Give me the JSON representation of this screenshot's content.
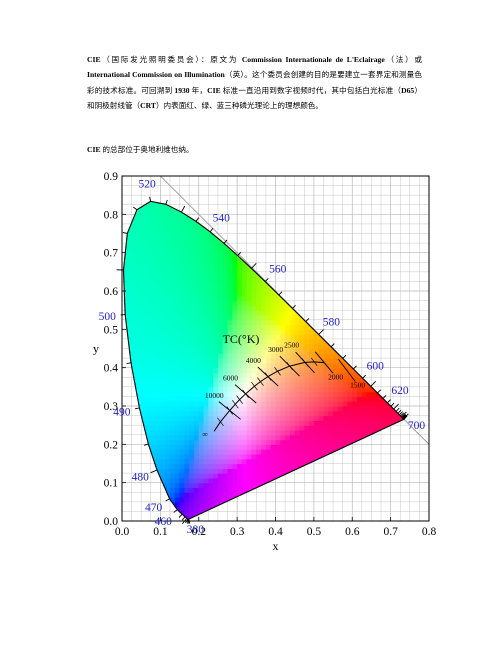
{
  "intro": {
    "parts": [
      {
        "t": "CIE",
        "b": true
      },
      {
        "t": "（国际发光照明委员会）：原文为 ",
        "b": false
      },
      {
        "t": "Commission Internationale de L'Eclairage",
        "b": true
      },
      {
        "t": "（法）或 ",
        "b": false
      },
      {
        "t": "International Commission on Illumination",
        "b": true
      },
      {
        "t": "（英）。这个委员会创建的目的是要建立一套界定和测量色彩的技术标准。可回溯到 ",
        "b": false
      },
      {
        "t": "1930",
        "b": true
      },
      {
        "t": " 年，",
        "b": false
      },
      {
        "t": "CIE",
        "b": true
      },
      {
        "t": " 标准一直沿用到数字视频时代，其中包括白光标准（",
        "b": false
      },
      {
        "t": "D65",
        "b": true
      },
      {
        "t": "）和阴极射线管（",
        "b": false
      },
      {
        "t": "CRT",
        "b": true
      },
      {
        "t": "）内表面红、绿、蓝三种磷光理论上的理想颜色。",
        "b": false
      }
    ]
  },
  "location": {
    "parts": [
      {
        "t": "CIE",
        "b": true
      },
      {
        "t": " 的总部位于奥地利维也纳。",
        "b": false
      }
    ]
  },
  "chart_data": {
    "type": "chromaticity",
    "xlabel": "x",
    "ylabel": "y",
    "xlim": [
      0,
      0.8
    ],
    "ylim": [
      0,
      0.9
    ],
    "x_ticks": [
      "0.0",
      "0.1",
      "0.2",
      "0.3",
      "0.4",
      "0.5",
      "0.6",
      "0.7",
      "0.8"
    ],
    "y_ticks": [
      "0.0",
      "0.1",
      "0.2",
      "0.3",
      "0.4",
      "0.5",
      "0.6",
      "0.7",
      "0.8",
      "0.9"
    ],
    "grid": true,
    "spectral_locus": [
      [
        0.1741,
        0.005
      ],
      [
        0.1738,
        0.0049
      ],
      [
        0.1733,
        0.0048
      ],
      [
        0.1726,
        0.0048
      ],
      [
        0.1714,
        0.0051
      ],
      [
        0.1689,
        0.0069
      ],
      [
        0.1644,
        0.0109
      ],
      [
        0.1566,
        0.0177
      ],
      [
        0.144,
        0.0297
      ],
      [
        0.1241,
        0.0578
      ],
      [
        0.0913,
        0.1327
      ],
      [
        0.0687,
        0.2007
      ],
      [
        0.0454,
        0.295
      ],
      [
        0.0235,
        0.4127
      ],
      [
        0.0082,
        0.5384
      ],
      [
        0.0039,
        0.6548
      ],
      [
        0.0139,
        0.7502
      ],
      [
        0.0389,
        0.812
      ],
      [
        0.0743,
        0.8338
      ],
      [
        0.1142,
        0.8262
      ],
      [
        0.1547,
        0.8059
      ],
      [
        0.1929,
        0.7816
      ],
      [
        0.2296,
        0.7543
      ],
      [
        0.2658,
        0.7243
      ],
      [
        0.3016,
        0.6923
      ],
      [
        0.3373,
        0.6589
      ],
      [
        0.3731,
        0.6245
      ],
      [
        0.4087,
        0.5896
      ],
      [
        0.4441,
        0.5547
      ],
      [
        0.4788,
        0.5202
      ],
      [
        0.5125,
        0.4866
      ],
      [
        0.5448,
        0.4544
      ],
      [
        0.5752,
        0.4242
      ],
      [
        0.6029,
        0.3965
      ],
      [
        0.627,
        0.3725
      ],
      [
        0.6482,
        0.3514
      ],
      [
        0.6658,
        0.334
      ],
      [
        0.6801,
        0.3197
      ],
      [
        0.6915,
        0.3083
      ],
      [
        0.7006,
        0.2993
      ],
      [
        0.7079,
        0.292
      ],
      [
        0.714,
        0.2859
      ],
      [
        0.719,
        0.2809
      ],
      [
        0.723,
        0.277
      ],
      [
        0.726,
        0.274
      ],
      [
        0.7283,
        0.2717
      ],
      [
        0.73,
        0.27
      ],
      [
        0.7311,
        0.2689
      ],
      [
        0.732,
        0.268
      ],
      [
        0.7327,
        0.2673
      ],
      [
        0.7334,
        0.2666
      ],
      [
        0.734,
        0.266
      ],
      [
        0.7344,
        0.2656
      ],
      [
        0.7346,
        0.2654
      ],
      [
        0.7347,
        0.2653
      ]
    ],
    "wavelength_labels": [
      {
        "text": "380",
        "x": 0.1741,
        "y": 0.005
      },
      {
        "text": "460",
        "x": 0.144,
        "y": 0.0297
      },
      {
        "text": "470",
        "x": 0.1241,
        "y": 0.0578
      },
      {
        "text": "480",
        "x": 0.0913,
        "y": 0.1327
      },
      {
        "text": "490",
        "x": 0.0454,
        "y": 0.295
      },
      {
        "text": "500",
        "x": 0.0082,
        "y": 0.5384
      },
      {
        "text": "520",
        "x": 0.0743,
        "y": 0.8338
      },
      {
        "text": "540",
        "x": 0.2296,
        "y": 0.7543
      },
      {
        "text": "560",
        "x": 0.3731,
        "y": 0.6245
      },
      {
        "text": "580",
        "x": 0.5125,
        "y": 0.4866
      },
      {
        "text": "600",
        "x": 0.627,
        "y": 0.3725
      },
      {
        "text": "620",
        "x": 0.6915,
        "y": 0.3083
      },
      {
        "text": "700",
        "x": 0.7347,
        "y": 0.2653
      }
    ],
    "planckian_locus": [
      [
        0.5268,
        0.4133
      ],
      [
        0.5008,
        0.4152
      ],
      [
        0.477,
        0.4137
      ],
      [
        0.4369,
        0.4041
      ],
      [
        0.4053,
        0.3907
      ],
      [
        0.3805,
        0.3768
      ],
      [
        0.3608,
        0.3636
      ],
      [
        0.3451,
        0.3516
      ],
      [
        0.3221,
        0.3318
      ],
      [
        0.3064,
        0.3166
      ],
      [
        0.2952,
        0.3048
      ],
      [
        0.2807,
        0.2883
      ],
      [
        0.2565,
        0.2587
      ],
      [
        0.2399,
        0.234
      ]
    ],
    "isotherms": [
      {
        "label": "1500",
        "x": 0.5858,
        "y": 0.3931
      },
      {
        "label": "2000",
        "x": 0.5268,
        "y": 0.4133
      },
      {
        "label": "2500",
        "x": 0.477,
        "y": 0.4137
      },
      {
        "label": "3000",
        "x": 0.4369,
        "y": 0.4041
      },
      {
        "label": "4000",
        "x": 0.3805,
        "y": 0.3768
      },
      {
        "label": "6000",
        "x": 0.3221,
        "y": 0.3318
      },
      {
        "label": "10000",
        "x": 0.2807,
        "y": 0.2883
      },
      {
        "label": "∞",
        "x": 0.2399,
        "y": 0.234
      }
    ],
    "planckian_label": "TC(°K)",
    "colors": {
      "label": "#1e1ecc",
      "grid": "#b9b9b9",
      "axes": "#000000"
    }
  }
}
